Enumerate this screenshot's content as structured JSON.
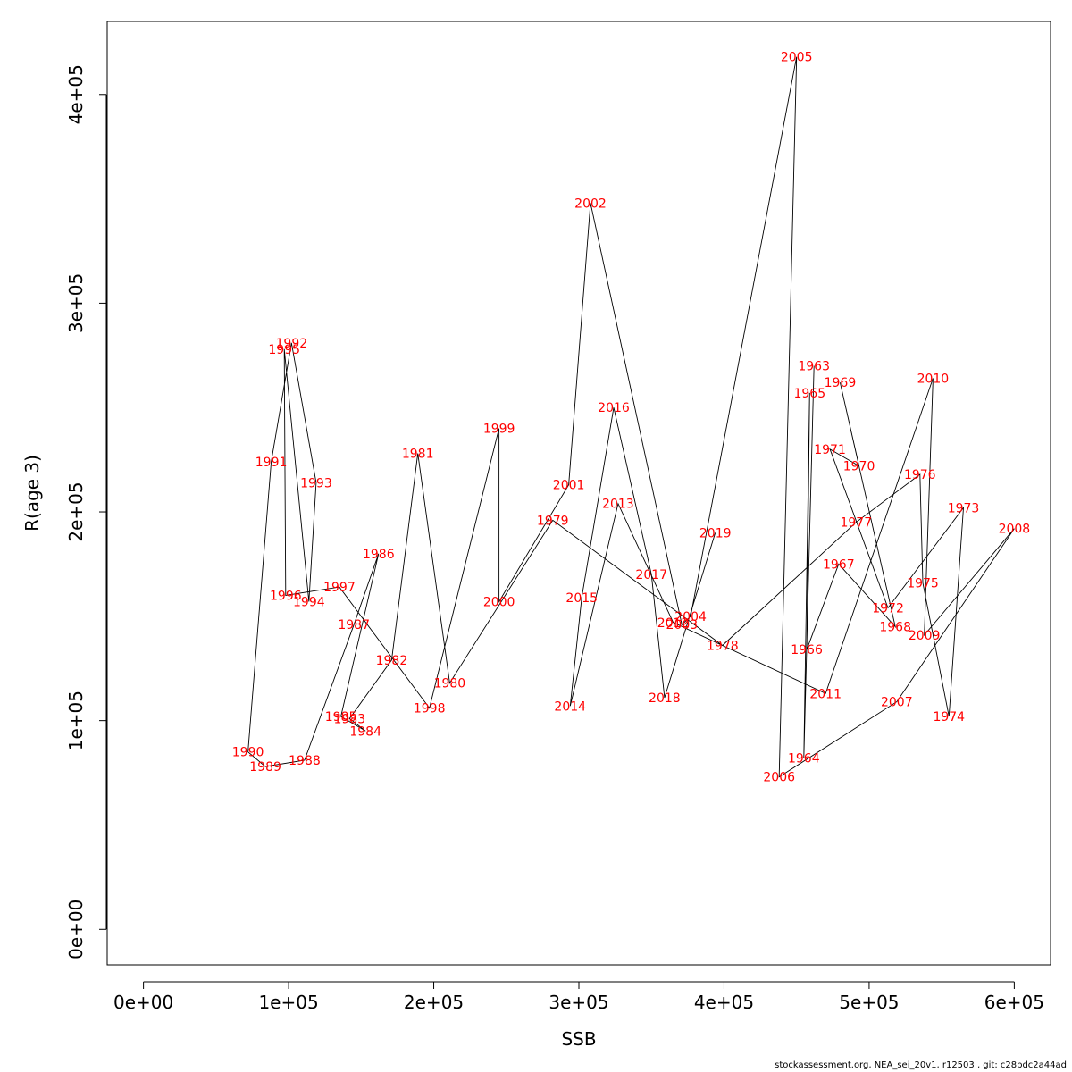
{
  "chart_data": {
    "type": "line",
    "xlabel": "SSB",
    "ylabel": "R(age 3)",
    "xlim": [
      -25000,
      625000
    ],
    "ylim": [
      -17000,
      435000
    ],
    "x_ticks": [
      0,
      100000,
      200000,
      300000,
      400000,
      500000,
      600000
    ],
    "x_tick_labels": [
      "0e+00",
      "1e+05",
      "2e+05",
      "3e+05",
      "4e+05",
      "5e+05",
      "6e+05"
    ],
    "y_ticks": [
      0,
      100000,
      200000,
      300000,
      400000
    ],
    "y_tick_labels": [
      "0e+00",
      "1e+05",
      "2e+05",
      "3e+05",
      "4e+05"
    ],
    "point_color": "#ff0000",
    "line_color": "#000000",
    "points": [
      {
        "year": "1963",
        "ssb": 462000,
        "r": 270000
      },
      {
        "year": "1964",
        "ssb": 455000,
        "r": 82000
      },
      {
        "year": "1965",
        "ssb": 459000,
        "r": 257000
      },
      {
        "year": "1966",
        "ssb": 457000,
        "r": 134000
      },
      {
        "year": "1967",
        "ssb": 479000,
        "r": 175000
      },
      {
        "year": "1968",
        "ssb": 518000,
        "r": 145000
      },
      {
        "year": "1969",
        "ssb": 480000,
        "r": 262000
      },
      {
        "year": "1970",
        "ssb": 493000,
        "r": 222000
      },
      {
        "year": "1971",
        "ssb": 473000,
        "r": 230000
      },
      {
        "year": "1972",
        "ssb": 513000,
        "r": 154000
      },
      {
        "year": "1973",
        "ssb": 565000,
        "r": 202000
      },
      {
        "year": "1974",
        "ssb": 555000,
        "r": 102000
      },
      {
        "year": "1975",
        "ssb": 537000,
        "r": 166000
      },
      {
        "year": "1976",
        "ssb": 535000,
        "r": 218000
      },
      {
        "year": "1977",
        "ssb": 491000,
        "r": 195000
      },
      {
        "year": "1978",
        "ssb": 399000,
        "r": 136000
      },
      {
        "year": "1979",
        "ssb": 282000,
        "r": 196000
      },
      {
        "year": "1980",
        "ssb": 211000,
        "r": 118000
      },
      {
        "year": "1981",
        "ssb": 189000,
        "r": 228000
      },
      {
        "year": "1982",
        "ssb": 171000,
        "r": 129000
      },
      {
        "year": "1983",
        "ssb": 142000,
        "r": 101000
      },
      {
        "year": "1984",
        "ssb": 153000,
        "r": 95000
      },
      {
        "year": "1985",
        "ssb": 136000,
        "r": 102000
      },
      {
        "year": "1986",
        "ssb": 162000,
        "r": 180000
      },
      {
        "year": "1987",
        "ssb": 145000,
        "r": 146000
      },
      {
        "year": "1988",
        "ssb": 111000,
        "r": 81000
      },
      {
        "year": "1989",
        "ssb": 84000,
        "r": 78000
      },
      {
        "year": "1990",
        "ssb": 72000,
        "r": 85000
      },
      {
        "year": "1991",
        "ssb": 88000,
        "r": 224000
      },
      {
        "year": "1992",
        "ssb": 102000,
        "r": 281000
      },
      {
        "year": "1993",
        "ssb": 119000,
        "r": 214000
      },
      {
        "year": "1994",
        "ssb": 114000,
        "r": 157000
      },
      {
        "year": "1995",
        "ssb": 97000,
        "r": 278000
      },
      {
        "year": "1996",
        "ssb": 98000,
        "r": 160000
      },
      {
        "year": "1997",
        "ssb": 135000,
        "r": 164000
      },
      {
        "year": "1998",
        "ssb": 197000,
        "r": 106000
      },
      {
        "year": "1999",
        "ssb": 245000,
        "r": 240000
      },
      {
        "year": "2000",
        "ssb": 245000,
        "r": 157000
      },
      {
        "year": "2001",
        "ssb": 293000,
        "r": 213000
      },
      {
        "year": "2002",
        "ssb": 308000,
        "r": 348000
      },
      {
        "year": "2003",
        "ssb": 371000,
        "r": 146000
      },
      {
        "year": "2004",
        "ssb": 377000,
        "r": 150000
      },
      {
        "year": "2005",
        "ssb": 450000,
        "r": 418000
      },
      {
        "year": "2006",
        "ssb": 438000,
        "r": 73000
      },
      {
        "year": "2007",
        "ssb": 519000,
        "r": 109000
      },
      {
        "year": "2008",
        "ssb": 600000,
        "r": 192000
      },
      {
        "year": "2009",
        "ssb": 538000,
        "r": 141000
      },
      {
        "year": "2010",
        "ssb": 544000,
        "r": 264000
      },
      {
        "year": "2011",
        "ssb": 470000,
        "r": 113000
      },
      {
        "year": "2012",
        "ssb": 365000,
        "r": 147000
      },
      {
        "year": "2013",
        "ssb": 327000,
        "r": 204000
      },
      {
        "year": "2014",
        "ssb": 294000,
        "r": 107000
      },
      {
        "year": "2015",
        "ssb": 302000,
        "r": 159000
      },
      {
        "year": "2016",
        "ssb": 324000,
        "r": 250000
      },
      {
        "year": "2017",
        "ssb": 350000,
        "r": 170000
      },
      {
        "year": "2018",
        "ssb": 359000,
        "r": 111000
      },
      {
        "year": "2019",
        "ssb": 394000,
        "r": 190000
      }
    ]
  },
  "footer": "stockassessment.org, NEA_sei_20v1, r12503 , git: c28bdc2a44ad"
}
